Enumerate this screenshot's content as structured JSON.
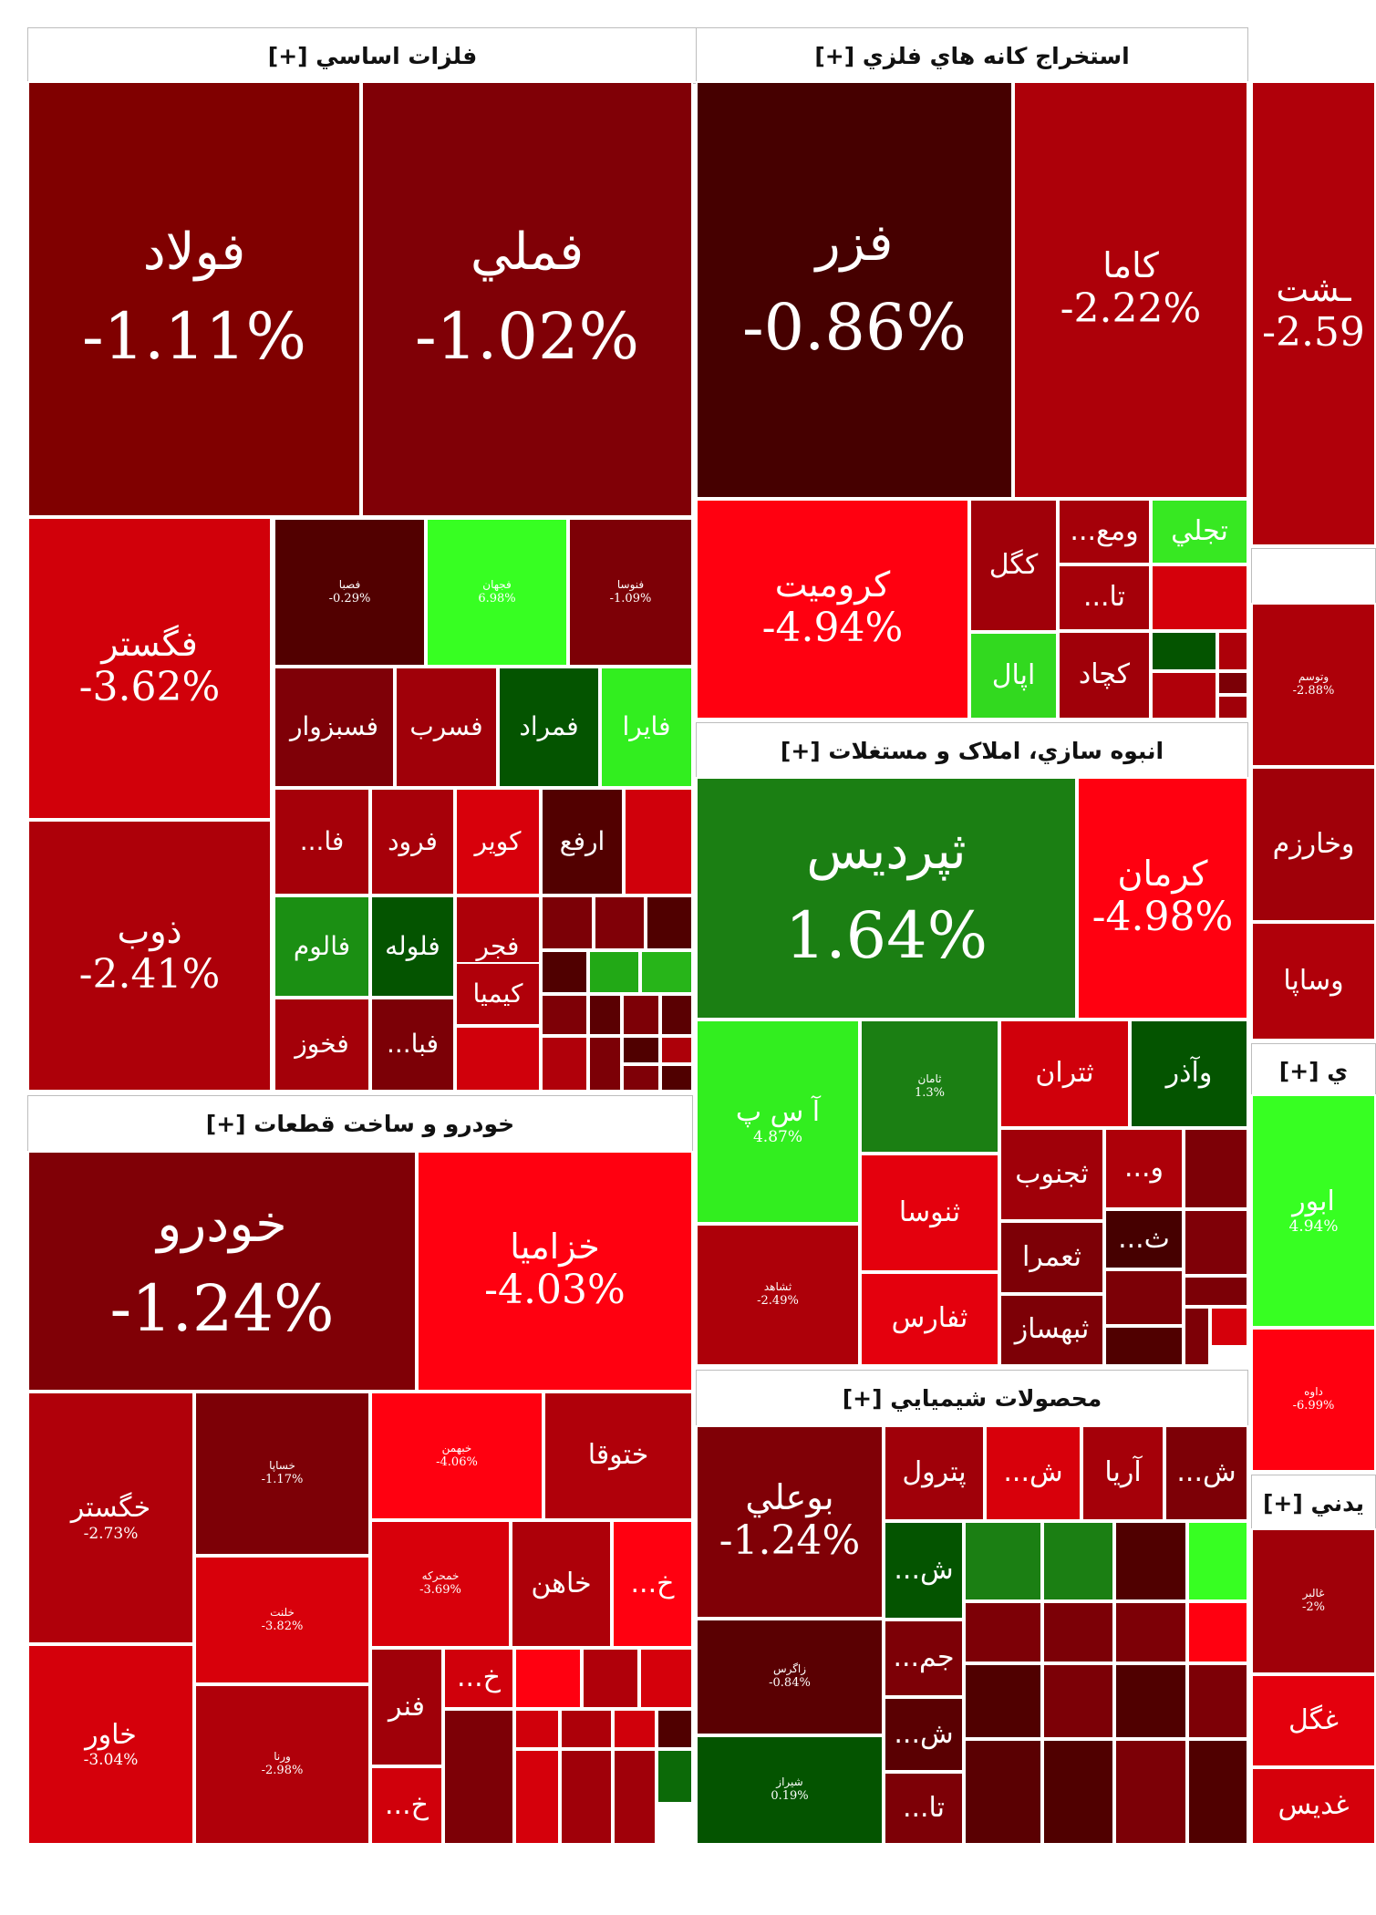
{
  "chart_data": {
    "type": "treemap",
    "sectors": [
      {
        "id": "s1",
        "title": "فلزات اساسي [+]",
        "tiles": [
          {
            "symbol": "فولاد",
            "change": "-1.11%",
            "color": "#800000"
          },
          {
            "symbol": "فملي",
            "change": "-1.02%",
            "color": "#800006"
          },
          {
            "symbol": "فگستر",
            "change": "-3.62%",
            "color": "#d1000a"
          },
          {
            "symbol": "ذوب",
            "change": "-2.41%",
            "color": "#ad0009"
          },
          {
            "symbol": "فصبا",
            "change": "-0.29%",
            "color": "#520000"
          },
          {
            "symbol": "فجهان",
            "change": "6.98%",
            "color": "#37ff22"
          },
          {
            "symbol": "فنوسا",
            "change": "-1.09%",
            "color": "#7d0006"
          },
          {
            "symbol": "فسبزوار",
            "change": "",
            "color": "#7f0007"
          },
          {
            "symbol": "فسرب",
            "change": "",
            "color": "#a00009"
          },
          {
            "symbol": "فمراد",
            "change": "",
            "color": "#045400"
          },
          {
            "symbol": "فايرا",
            "change": "",
            "color": "#32ee1f"
          },
          {
            "symbol": "فا...",
            "change": "",
            "color": "#a50009"
          },
          {
            "symbol": "فرود",
            "change": "",
            "color": "#a70009"
          },
          {
            "symbol": "کوير",
            "change": "",
            "color": "#d8000b"
          },
          {
            "symbol": "ارفع",
            "change": "",
            "color": "#520000"
          },
          {
            "symbol": "",
            "change": "",
            "color": "#d0000b"
          },
          {
            "symbol": "فالوم",
            "change": "",
            "color": "#1b8f13"
          },
          {
            "symbol": "فلوله",
            "change": "",
            "color": "#045400"
          },
          {
            "symbol": "فجر",
            "change": "",
            "color": "#ad0009"
          },
          {
            "symbol": "",
            "change": "",
            "color": "#7c0006"
          },
          {
            "symbol": "",
            "change": "",
            "color": "#800007"
          },
          {
            "symbol": "",
            "change": "",
            "color": "#500000"
          },
          {
            "symbol": "کيميا",
            "change": "",
            "color": "#b0000a"
          },
          {
            "symbol": "فخوز",
            "change": "",
            "color": "#a40009"
          },
          {
            "symbol": "فبا...",
            "change": "",
            "color": "#7c0006"
          },
          {
            "symbol": "",
            "change": "",
            "color": "#d0000b"
          },
          {
            "symbol": "",
            "change": "",
            "color": "#500000"
          },
          {
            "symbol": "",
            "change": "",
            "color": "#22a916"
          },
          {
            "symbol": "",
            "change": "",
            "color": "#27b519"
          },
          {
            "symbol": "",
            "change": "",
            "color": "#7e0006"
          },
          {
            "symbol": "",
            "change": "",
            "color": "#5a0002"
          },
          {
            "symbol": "",
            "change": "",
            "color": "#7d0006"
          },
          {
            "symbol": "",
            "change": "",
            "color": "#5a0002"
          },
          {
            "symbol": "",
            "change": "",
            "color": "#b0000a"
          },
          {
            "symbol": "",
            "change": "",
            "color": "#7c0006"
          },
          {
            "symbol": "",
            "change": "",
            "color": "#500000"
          },
          {
            "symbol": "",
            "change": "",
            "color": "#ad0009"
          },
          {
            "symbol": "",
            "change": "",
            "color": "#7f0007"
          },
          {
            "symbol": "",
            "change": "",
            "color": "#500000"
          }
        ]
      },
      {
        "id": "s2",
        "title": "استخراج کانه هاي فلزي [+]",
        "tiles": [
          {
            "symbol": "فزر",
            "change": "-0.86%",
            "color": "#460000"
          },
          {
            "symbol": "کاما",
            "change": "-2.22%",
            "color": "#ad0009"
          },
          {
            "symbol": "کروميت",
            "change": "-4.94%",
            "color": "#ff0010"
          },
          {
            "symbol": "کگل",
            "change": "",
            "color": "#a00009"
          },
          {
            "symbol": "ومع...",
            "change": "",
            "color": "#a50009"
          },
          {
            "symbol": "تجلي",
            "change": "",
            "color": "#37e822"
          },
          {
            "symbol": "تا...",
            "change": "",
            "color": "#a50009"
          },
          {
            "symbol": "",
            "change": "",
            "color": "#d5000b"
          },
          {
            "symbol": "اپال",
            "change": "",
            "color": "#32d91f"
          },
          {
            "symbol": "کچاد",
            "change": "",
            "color": "#a00009"
          },
          {
            "symbol": "",
            "change": "",
            "color": "#045400"
          },
          {
            "symbol": "",
            "change": "",
            "color": "#ad0009"
          },
          {
            "symbol": "",
            "change": "",
            "color": "#b0000a"
          },
          {
            "symbol": "",
            "change": "",
            "color": "#7c0006"
          },
          {
            "symbol": "",
            "change": "",
            "color": "#a00009"
          }
        ]
      },
      {
        "id": "s3",
        "title": "انبوه سازي، املاک و مستغلات [+]",
        "tiles": [
          {
            "symbol": "ثپرديس",
            "change": "1.64%",
            "color": "#1b7f13"
          },
          {
            "symbol": "کرمان",
            "change": "-4.98%",
            "color": "#ff0010"
          },
          {
            "symbol": "آ س پ",
            "change": "4.87%",
            "color": "#32ee1f"
          },
          {
            "symbol": "ثامان",
            "change": "1.3%",
            "color": "#1b7f13"
          },
          {
            "symbol": "ثتران",
            "change": "",
            "color": "#d0000b"
          },
          {
            "symbol": "وآذر",
            "change": "",
            "color": "#045400"
          },
          {
            "symbol": "ثجنوب",
            "change": "",
            "color": "#a00009"
          },
          {
            "symbol": "و...",
            "change": "",
            "color": "#ad0009"
          },
          {
            "symbol": "",
            "change": "",
            "color": "#7d0006"
          },
          {
            "symbol": "ثنوسا",
            "change": "",
            "color": "#e4000d"
          },
          {
            "symbol": "ث...",
            "change": "",
            "color": "#460000"
          },
          {
            "symbol": "",
            "change": "",
            "color": "#7f0007"
          },
          {
            "symbol": "ثشاهد",
            "change": "-2.49%",
            "color": "#ad0009"
          },
          {
            "symbol": "ثعمرا",
            "change": "",
            "color": "#7d0006"
          },
          {
            "symbol": "",
            "change": "",
            "color": "#7c0006"
          },
          {
            "symbol": "",
            "change": "",
            "color": "#7c0006"
          },
          {
            "symbol": "ثفارس",
            "change": "",
            "color": "#e4000d"
          },
          {
            "symbol": "ثبهساز",
            "change": "",
            "color": "#7d0006"
          },
          {
            "symbol": "",
            "change": "",
            "color": "#500000"
          },
          {
            "symbol": "",
            "change": "",
            "color": "#7d0006"
          },
          {
            "symbol": "",
            "change": "",
            "color": "#d5000b"
          }
        ]
      },
      {
        "id": "s4",
        "title": "خودرو و ساخت قطعات [+]",
        "tiles": [
          {
            "symbol": "خودرو",
            "change": "-1.24%",
            "color": "#800006"
          },
          {
            "symbol": "خزاميا",
            "change": "-4.03%",
            "color": "#ff0010"
          },
          {
            "symbol": "خگستر",
            "change": "-2.73%",
            "color": "#b0000a"
          },
          {
            "symbol": "خساپا",
            "change": "-1.17%",
            "color": "#7d0006"
          },
          {
            "symbol": "خبهمن",
            "change": "-4.06%",
            "color": "#ff0010"
          },
          {
            "symbol": "ختوقا",
            "change": "",
            "color": "#b0000a"
          },
          {
            "symbol": "خلنت",
            "change": "-3.82%",
            "color": "#d8000b"
          },
          {
            "symbol": "خمحرکه",
            "change": "-3.69%",
            "color": "#d8000b"
          },
          {
            "symbol": "خاهن",
            "change": "",
            "color": "#ad0009"
          },
          {
            "symbol": "خ...",
            "change": "",
            "color": "#ff0010"
          },
          {
            "symbol": "خاور",
            "change": "-3.04%",
            "color": "#d5000b"
          },
          {
            "symbol": "ورنا",
            "change": "-2.98%",
            "color": "#b0000a"
          },
          {
            "symbol": "فنر",
            "change": "",
            "color": "#a00009"
          },
          {
            "symbol": "خ...",
            "change": "",
            "color": "#d0000b"
          },
          {
            "symbol": "",
            "change": "",
            "color": "#ff0010"
          },
          {
            "symbol": "",
            "change": "",
            "color": "#b0000a"
          },
          {
            "symbol": "",
            "change": "",
            "color": "#d5000b"
          },
          {
            "symbol": "خ...",
            "change": "",
            "color": "#d0000b"
          },
          {
            "symbol": "",
            "change": "",
            "color": "#7d0006"
          },
          {
            "symbol": "",
            "change": "",
            "color": "#d0000b"
          },
          {
            "symbol": "",
            "change": "",
            "color": "#ad0009"
          },
          {
            "symbol": "",
            "change": "",
            "color": "#d0000b"
          },
          {
            "symbol": "",
            "change": "",
            "color": "#500000"
          },
          {
            "symbol": "",
            "change": "",
            "color": "#d5000b"
          },
          {
            "symbol": "",
            "change": "",
            "color": "#a00009"
          },
          {
            "symbol": "",
            "change": "",
            "color": "#a00009"
          },
          {
            "symbol": "",
            "change": "",
            "color": "#0c6a08"
          }
        ]
      },
      {
        "id": "s5",
        "title": "محصولات شيميايي [+]",
        "tiles": [
          {
            "symbol": "بوعلي",
            "change": "-1.24%",
            "color": "#800006"
          },
          {
            "symbol": "پترول",
            "change": "",
            "color": "#a00009"
          },
          {
            "symbol": "ش...",
            "change": "",
            "color": "#d8000b"
          },
          {
            "symbol": "آريا",
            "change": "",
            "color": "#a50009"
          },
          {
            "symbol": "ش...",
            "change": "",
            "color": "#7d0006"
          },
          {
            "symbol": "ش...",
            "change": "",
            "color": "#045400"
          },
          {
            "symbol": "",
            "change": "",
            "color": "#1b7f13"
          },
          {
            "symbol": "",
            "change": "",
            "color": "#1b7f13"
          },
          {
            "symbol": "",
            "change": "",
            "color": "#500000"
          },
          {
            "symbol": "",
            "change": "",
            "color": "#37ff22"
          },
          {
            "symbol": "زاگرس",
            "change": "-0.84%",
            "color": "#5a0002"
          },
          {
            "symbol": "جم...",
            "change": "",
            "color": "#7d0006"
          },
          {
            "symbol": "",
            "change": "",
            "color": "#7d0006"
          },
          {
            "symbol": "",
            "change": "",
            "color": "#7c0006"
          },
          {
            "symbol": "",
            "change": "",
            "color": "#7d0006"
          },
          {
            "symbol": "",
            "change": "",
            "color": "#ff0010"
          },
          {
            "symbol": "شيراز",
            "change": "0.19%",
            "color": "#045400"
          },
          {
            "symbol": "ش...",
            "change": "",
            "color": "#5a0002"
          },
          {
            "symbol": "تا...",
            "change": "",
            "color": "#7d0006"
          },
          {
            "symbol": "",
            "change": "",
            "color": "#500000"
          },
          {
            "symbol": "",
            "change": "",
            "color": "#7c0006"
          },
          {
            "symbol": "",
            "change": "",
            "color": "#500000"
          },
          {
            "symbol": "",
            "change": "",
            "color": "#7d0006"
          },
          {
            "symbol": "",
            "change": "",
            "color": "#5a0002"
          },
          {
            "symbol": "",
            "change": "",
            "color": "#500000"
          },
          {
            "symbol": "",
            "change": "",
            "color": "#7c0006"
          },
          {
            "symbol": "",
            "change": "",
            "color": "#500000"
          },
          {
            "symbol": "",
            "change": "",
            "color": "#7d0006"
          }
        ]
      },
      {
        "id": "s6",
        "title": "",
        "tiles": [
          {
            "symbol": "ـشت",
            "change": "-2.59",
            "color": "#b0000a"
          }
        ]
      },
      {
        "id": "s7",
        "title": "",
        "tiles": [
          {
            "symbol": "وتوسم",
            "change": "-2.88%",
            "color": "#ad0009"
          },
          {
            "symbol": "وخارزم",
            "change": "",
            "color": "#a00009"
          },
          {
            "symbol": "وساپا",
            "change": "",
            "color": "#b0000a"
          }
        ]
      },
      {
        "id": "s8",
        "title": "ي [+]",
        "tiles": [
          {
            "symbol": "ابور",
            "change": "4.94%",
            "color": "#37ff22"
          },
          {
            "symbol": "داوه",
            "change": "-6.99%",
            "color": "#ff0010"
          }
        ]
      },
      {
        "id": "s9",
        "title": "يدني [+]",
        "tiles": [
          {
            "symbol": "غالبر",
            "change": "-2%",
            "color": "#a00009"
          },
          {
            "symbol": "غگل",
            "change": "",
            "color": "#e4000d"
          },
          {
            "symbol": "غديس",
            "change": "",
            "color": "#d5000b"
          }
        ]
      }
    ]
  }
}
